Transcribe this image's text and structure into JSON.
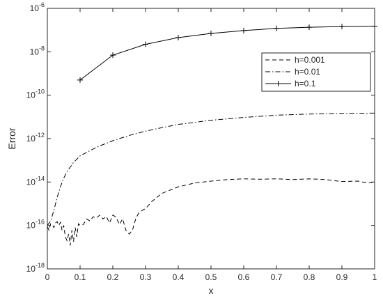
{
  "chart_data": {
    "type": "line",
    "title": "",
    "xlabel": "x",
    "ylabel": "Error",
    "xlim": [
      0,
      1
    ],
    "ylim": [
      1e-18,
      1e-06
    ],
    "yscale": "log",
    "grid": false,
    "legend_position": "top-right",
    "x_ticks": [
      "0",
      "0.1",
      "0.2",
      "0.3",
      "0.4",
      "0.5",
      "0.6",
      "0.7",
      "0.8",
      "0.9",
      "1"
    ],
    "y_ticks": [
      {
        "base": "10",
        "exp": "-18",
        "value": 1e-18
      },
      {
        "base": "10",
        "exp": "-16",
        "value": 1e-16
      },
      {
        "base": "10",
        "exp": "-14",
        "value": 1e-14
      },
      {
        "base": "10",
        "exp": "-12",
        "value": 1e-12
      },
      {
        "base": "10",
        "exp": "-10",
        "value": 1e-10
      },
      {
        "base": "10",
        "exp": "-8",
        "value": 1e-08
      },
      {
        "base": "10",
        "exp": "-6",
        "value": 1e-06
      }
    ],
    "series": [
      {
        "name": "h=0.001",
        "line_style": "dashed",
        "marker": "none",
        "x": [
          0.0,
          0.005,
          0.01,
          0.015,
          0.02,
          0.025,
          0.03,
          0.035,
          0.04,
          0.045,
          0.05,
          0.055,
          0.06,
          0.065,
          0.07,
          0.075,
          0.08,
          0.085,
          0.09,
          0.095,
          0.1,
          0.11,
          0.12,
          0.13,
          0.14,
          0.15,
          0.16,
          0.17,
          0.18,
          0.19,
          0.2,
          0.21,
          0.22,
          0.23,
          0.24,
          0.25,
          0.26,
          0.27,
          0.28,
          0.3,
          0.32,
          0.35,
          0.4,
          0.45,
          0.5,
          0.55,
          0.6,
          0.65,
          0.7,
          0.75,
          0.8,
          0.85,
          0.9,
          0.95,
          0.98,
          1.0
        ],
        "y": [
          9e-17,
          6e-17,
          1.2e-16,
          1.1e-16,
          8e-17,
          1.3e-16,
          1.5e-16,
          1e-16,
          1.4e-16,
          6e-17,
          1e-16,
          3e-17,
          2e-17,
          4e-17,
          1.2e-17,
          6e-17,
          1.8e-17,
          8e-17,
          3e-17,
          1.2e-16,
          1e-16,
          1.1e-16,
          2e-16,
          1.6e-16,
          2.5e-16,
          2.2e-16,
          3e-16,
          2e-16,
          2.6e-16,
          1.3e-16,
          3e-16,
          2.4e-16,
          1.1e-16,
          2e-16,
          6e-17,
          4e-17,
          6e-17,
          2e-16,
          4e-16,
          6e-16,
          1.3e-15,
          3e-15,
          6e-15,
          9e-15,
          1.1e-14,
          1.3e-14,
          1.4e-14,
          1.35e-14,
          1.4e-14,
          1.3e-14,
          1.4e-14,
          1.3e-14,
          1.05e-14,
          1.1e-14,
          9e-15,
          1e-14
        ]
      },
      {
        "name": "h=0.01",
        "line_style": "dashdot",
        "marker": "none",
        "x": [
          0.0,
          0.01,
          0.02,
          0.03,
          0.04,
          0.05,
          0.06,
          0.08,
          0.1,
          0.15,
          0.2,
          0.25,
          0.3,
          0.35,
          0.4,
          0.5,
          0.6,
          0.7,
          0.8,
          0.9,
          1.0
        ],
        "y": [
          1e-16,
          1.6e-16,
          5e-16,
          2e-15,
          6e-15,
          1.5e-14,
          3e-14,
          8e-14,
          1.6e-13,
          4e-13,
          8e-13,
          1.4e-12,
          2.2e-12,
          3.2e-12,
          4.5e-12,
          7e-12,
          9.5e-12,
          1.2e-11,
          1.35e-11,
          1.45e-11,
          1.5e-11
        ]
      },
      {
        "name": "h=0.1",
        "line_style": "solid",
        "marker": "plus",
        "x": [
          0.1,
          0.2,
          0.3,
          0.4,
          0.5,
          0.6,
          0.7,
          0.8,
          0.9,
          1.0
        ],
        "y": [
          5e-10,
          7e-09,
          2.2e-08,
          4.5e-08,
          7e-08,
          9.5e-08,
          1.2e-07,
          1.35e-07,
          1.45e-07,
          1.5e-07
        ]
      }
    ]
  }
}
